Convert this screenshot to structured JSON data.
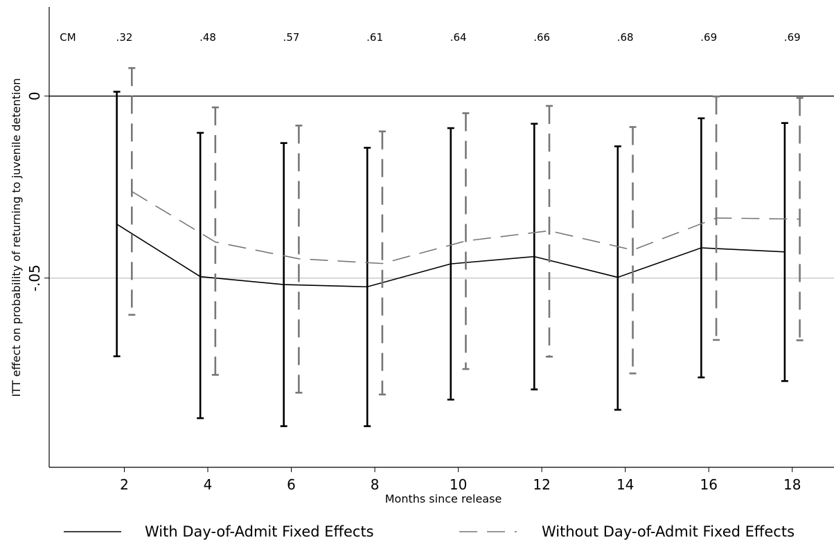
{
  "chart_data": {
    "type": "line",
    "xlabel": "Months since release",
    "ylabel": "ITT effect on probability of returning to juvenile detention",
    "x": [
      2,
      4,
      6,
      8,
      10,
      12,
      14,
      16,
      18
    ],
    "x_ticks": [
      "2",
      "4",
      "6",
      "8",
      "10",
      "12",
      "14",
      "16",
      "18"
    ],
    "xlim": [
      0.2,
      19
    ],
    "y_ticks": [
      {
        "value": 0,
        "label": "0"
      },
      {
        "value": -0.05,
        "label": "-.05"
      }
    ],
    "ylim": [
      -0.102,
      0.0245
    ],
    "reference_lines": [
      {
        "value": 0,
        "color": "#000000"
      },
      {
        "value": -0.05,
        "color": "#c8c8c8"
      }
    ],
    "control_means": {
      "label": "CM",
      "values": [
        ".32",
        ".48",
        ".57",
        ".61",
        ".64",
        ".66",
        ".68",
        ".69",
        ".69"
      ]
    },
    "series": [
      {
        "name": "With Day-of-Admit Fixed Effects",
        "style": "solid",
        "color": "#000000",
        "offset": -0.18,
        "values": [
          -0.0352,
          -0.0496,
          -0.0518,
          -0.0524,
          -0.0461,
          -0.0441,
          -0.0498,
          -0.0417,
          -0.0428
        ],
        "ci_low": [
          -0.0715,
          -0.0885,
          -0.0907,
          -0.0907,
          -0.0834,
          -0.0806,
          -0.0862,
          -0.0773,
          -0.0783
        ],
        "ci_high": [
          0.0012,
          -0.0101,
          -0.0129,
          -0.0142,
          -0.0088,
          -0.0076,
          -0.0138,
          -0.0061,
          -0.0074
        ]
      },
      {
        "name": "Without Day-of-Admit Fixed Effects",
        "style": "dashed",
        "color": "#777777",
        "offset": 0.18,
        "values": [
          -0.0262,
          -0.0401,
          -0.0447,
          -0.046,
          -0.0398,
          -0.037,
          -0.0423,
          -0.0335,
          -0.0338
        ],
        "ci_low": [
          -0.0601,
          -0.0766,
          -0.0815,
          -0.082,
          -0.075,
          -0.0716,
          -0.0762,
          -0.067,
          -0.0671
        ],
        "ci_high": [
          0.0077,
          -0.0031,
          -0.0081,
          -0.0097,
          -0.0047,
          -0.0027,
          -0.0085,
          -0.0001,
          -0.0005
        ]
      }
    ]
  }
}
